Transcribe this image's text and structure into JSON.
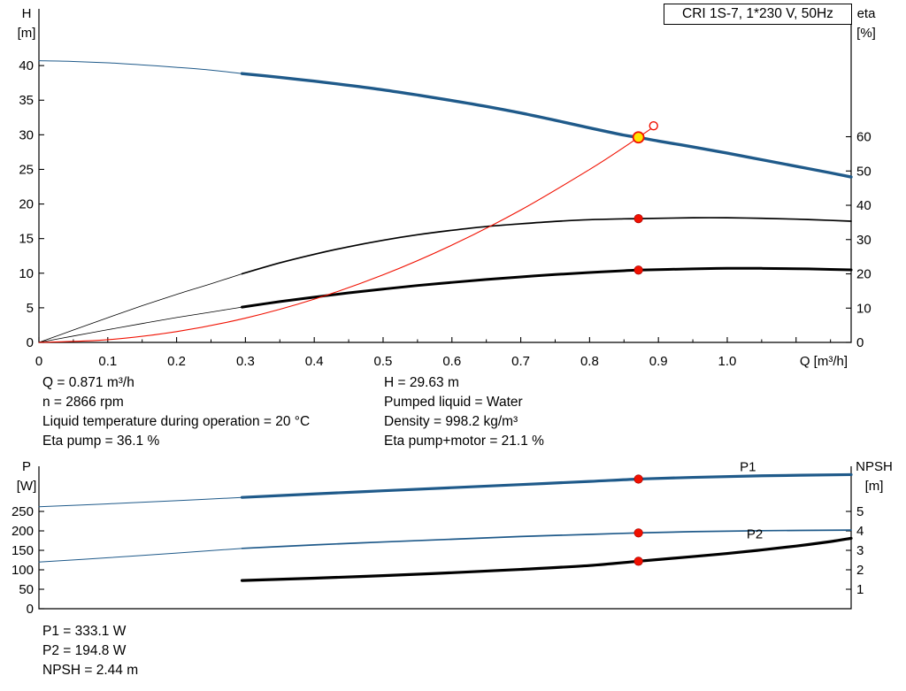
{
  "title_box": "CRI 1S-7, 1*230 V, 50Hz",
  "info_top": {
    "col1": [
      "Q = 0.871 m³/h",
      "n = 2866 rpm",
      "Liquid temperature during operation = 20 °C",
      "Eta pump = 36.1 %"
    ],
    "col2": [
      "H = 29.63 m",
      "Pumped liquid = Water",
      "Density = 998.2 kg/m³",
      "Eta pump+motor = 21.1 %"
    ]
  },
  "info_bottom": [
    "P1 = 333.1 W",
    "P2 = 194.8 W",
    "NPSH = 2.44 m"
  ],
  "colors": {
    "blue": "#1f5a8a",
    "black": "#000000",
    "red": "#f01000",
    "yellow": "#ffe600",
    "axis": "#000000"
  },
  "chart_data": [
    {
      "id": "hq",
      "type": "line",
      "title": "CRI 1S-7, 1*230 V, 50Hz",
      "x_axis": {
        "label": "Q [m³/h]",
        "min": 0,
        "max": 1.18,
        "minor_step": 0.05,
        "ticks": [
          {
            "v": 0,
            "t": "0"
          },
          {
            "v": 0.1,
            "t": "0.1"
          },
          {
            "v": 0.2,
            "t": "0.2"
          },
          {
            "v": 0.3,
            "t": "0.3"
          },
          {
            "v": 0.4,
            "t": "0.4"
          },
          {
            "v": 0.5,
            "t": "0.5"
          },
          {
            "v": 0.6,
            "t": "0.6"
          },
          {
            "v": 0.7,
            "t": "0.7"
          },
          {
            "v": 0.8,
            "t": "0.8"
          },
          {
            "v": 0.9,
            "t": "0.9"
          },
          {
            "v": 1.0,
            "t": "1.0"
          },
          {
            "v": 1.1,
            "t": ""
          }
        ]
      },
      "y_left": {
        "name": "H",
        "unit": "[m]",
        "min": 0,
        "max": 48.2,
        "ticks": [
          0,
          5,
          10,
          15,
          20,
          25,
          30,
          35,
          40
        ]
      },
      "y_right": {
        "name": "eta",
        "unit": "[%]",
        "min": 0,
        "max": 97.3,
        "ticks": [
          0,
          10,
          20,
          30,
          40,
          50,
          60
        ]
      },
      "series": [
        {
          "name": "head-curve",
          "axis": "left",
          "color": "blue",
          "width": 3.4,
          "points": [
            [
              0.295,
              38.85
            ],
            [
              0.35,
              38.3
            ],
            [
              0.4,
              37.75
            ],
            [
              0.45,
              37.15
            ],
            [
              0.5,
              36.5
            ],
            [
              0.55,
              35.75
            ],
            [
              0.6,
              34.95
            ],
            [
              0.65,
              34.1
            ],
            [
              0.7,
              33.15
            ],
            [
              0.75,
              32.1
            ],
            [
              0.8,
              31.0
            ],
            [
              0.85,
              29.95
            ],
            [
              0.871,
              29.63
            ],
            [
              0.9,
              29.1
            ],
            [
              0.95,
              28.25
            ],
            [
              1.0,
              27.35
            ],
            [
              1.05,
              26.4
            ],
            [
              1.1,
              25.45
            ],
            [
              1.15,
              24.5
            ],
            [
              1.18,
              23.9
            ]
          ]
        },
        {
          "name": "head-curve-extension",
          "axis": "left",
          "color": "blue",
          "width": 1,
          "points": [
            [
              0,
              40.7
            ],
            [
              0.05,
              40.6
            ],
            [
              0.1,
              40.4
            ],
            [
              0.15,
              40.1
            ],
            [
              0.2,
              39.75
            ],
            [
              0.25,
              39.35
            ],
            [
              0.295,
              38.85
            ]
          ]
        },
        {
          "name": "eta-pump-curve",
          "axis": "right",
          "color": "black",
          "width": 1.7,
          "points": [
            [
              0.295,
              20.0
            ],
            [
              0.35,
              23.2
            ],
            [
              0.4,
              25.7
            ],
            [
              0.45,
              27.9
            ],
            [
              0.5,
              29.8
            ],
            [
              0.55,
              31.4
            ],
            [
              0.6,
              32.7
            ],
            [
              0.65,
              33.8
            ],
            [
              0.7,
              34.6
            ],
            [
              0.75,
              35.3
            ],
            [
              0.8,
              35.8
            ],
            [
              0.85,
              36.05
            ],
            [
              0.871,
              36.1
            ],
            [
              0.95,
              36.35
            ],
            [
              1.0,
              36.35
            ],
            [
              1.05,
              36.2
            ],
            [
              1.1,
              35.95
            ],
            [
              1.15,
              35.6
            ],
            [
              1.18,
              35.35
            ]
          ]
        },
        {
          "name": "eta-pump-extension",
          "axis": "right",
          "color": "black",
          "width": 0.8,
          "points": [
            [
              0,
              0
            ],
            [
              0.05,
              3.6
            ],
            [
              0.1,
              7.2
            ],
            [
              0.15,
              10.7
            ],
            [
              0.2,
              14.0
            ],
            [
              0.25,
              17.1
            ],
            [
              0.295,
              20.0
            ]
          ]
        },
        {
          "name": "eta-pump-motor-curve",
          "axis": "right",
          "color": "black",
          "width": 3,
          "points": [
            [
              0.295,
              10.3
            ],
            [
              0.35,
              11.9
            ],
            [
              0.4,
              13.2
            ],
            [
              0.45,
              14.45
            ],
            [
              0.5,
              15.55
            ],
            [
              0.55,
              16.6
            ],
            [
              0.6,
              17.5
            ],
            [
              0.65,
              18.35
            ],
            [
              0.7,
              19.1
            ],
            [
              0.75,
              19.8
            ],
            [
              0.8,
              20.4
            ],
            [
              0.85,
              20.9
            ],
            [
              0.871,
              21.1
            ],
            [
              0.95,
              21.45
            ],
            [
              1.0,
              21.6
            ],
            [
              1.05,
              21.6
            ],
            [
              1.1,
              21.5
            ],
            [
              1.15,
              21.3
            ],
            [
              1.18,
              21.15
            ]
          ]
        },
        {
          "name": "eta-pump-motor-extension",
          "axis": "right",
          "color": "black",
          "width": 0.8,
          "points": [
            [
              0,
              0
            ],
            [
              0.05,
              1.85
            ],
            [
              0.1,
              3.7
            ],
            [
              0.15,
              5.5
            ],
            [
              0.2,
              7.25
            ],
            [
              0.25,
              8.85
            ],
            [
              0.295,
              10.3
            ]
          ]
        },
        {
          "name": "system-curve",
          "axis": "left",
          "color": "red",
          "width": 1.1,
          "points": [
            [
              0,
              0
            ],
            [
              0.1,
              0.39
            ],
            [
              0.2,
              1.56
            ],
            [
              0.3,
              3.51
            ],
            [
              0.4,
              6.25
            ],
            [
              0.5,
              9.76
            ],
            [
              0.6,
              14.06
            ],
            [
              0.7,
              19.13
            ],
            [
              0.8,
              24.99
            ],
            [
              0.85,
              28.2
            ],
            [
              0.871,
              29.63
            ],
            [
              0.891,
              31.0
            ]
          ]
        }
      ],
      "markers": [
        {
          "name": "duty-point",
          "axis": "left",
          "q": 0.871,
          "v": 29.63,
          "style": "duty"
        },
        {
          "name": "requested-duty-point",
          "axis": "left",
          "q": 0.893,
          "v": 31.3,
          "style": "open"
        },
        {
          "name": "eta-pump-point",
          "axis": "right",
          "q": 0.871,
          "v": 36.1,
          "style": "dot"
        },
        {
          "name": "eta-pump-motor-point",
          "axis": "right",
          "q": 0.871,
          "v": 21.1,
          "style": "dot"
        }
      ]
    },
    {
      "id": "power",
      "type": "line",
      "title": "",
      "x_axis": {
        "label": "",
        "min": 0,
        "max": 1.18,
        "minor_step": 0,
        "ticks": []
      },
      "y_left": {
        "name": "P",
        "unit": "[W]",
        "min": 0,
        "max": 366,
        "ticks": [
          0,
          50,
          100,
          150,
          200,
          250
        ]
      },
      "y_right": {
        "name": "NPSH",
        "unit": "[m]",
        "min": 0,
        "max": 7.32,
        "ticks": [
          1,
          2,
          3,
          4,
          5
        ]
      },
      "series": [
        {
          "name": "p1-curve",
          "axis": "left",
          "color": "blue",
          "width": 3.2,
          "points": [
            [
              0.295,
              286
            ],
            [
              0.4,
              295
            ],
            [
              0.5,
              303
            ],
            [
              0.6,
              311
            ],
            [
              0.7,
              319
            ],
            [
              0.8,
              327
            ],
            [
              0.871,
              333.1
            ],
            [
              0.95,
              337.5
            ],
            [
              1.05,
              341.5
            ],
            [
              1.18,
              344.5
            ]
          ],
          "label": {
            "text": "P1",
            "q": 1.03,
            "v": 353
          }
        },
        {
          "name": "p1-extension",
          "axis": "left",
          "color": "blue",
          "width": 1,
          "points": [
            [
              0,
              262
            ],
            [
              0.1,
              269.5
            ],
            [
              0.2,
              277.5
            ],
            [
              0.295,
              286
            ]
          ]
        },
        {
          "name": "p2-curve",
          "axis": "left",
          "color": "blue",
          "width": 1.7,
          "points": [
            [
              0.295,
              155
            ],
            [
              0.4,
              164
            ],
            [
              0.5,
              171.5
            ],
            [
              0.6,
              178.5
            ],
            [
              0.7,
              185.5
            ],
            [
              0.8,
              191
            ],
            [
              0.871,
              194.8
            ],
            [
              0.95,
              198
            ],
            [
              1.05,
              200.5
            ],
            [
              1.18,
              202
            ]
          ],
          "label": {
            "text": "P2",
            "q": 1.04,
            "v": 181
          }
        },
        {
          "name": "p2-extension",
          "axis": "left",
          "color": "blue",
          "width": 1,
          "points": [
            [
              0,
              120
            ],
            [
              0.1,
              131
            ],
            [
              0.2,
              143
            ],
            [
              0.295,
              155
            ]
          ]
        },
        {
          "name": "npsh-curve",
          "axis": "right",
          "color": "black",
          "width": 3.2,
          "points": [
            [
              0.295,
              1.45
            ],
            [
              0.4,
              1.57
            ],
            [
              0.5,
              1.7
            ],
            [
              0.6,
              1.85
            ],
            [
              0.7,
              2.02
            ],
            [
              0.8,
              2.22
            ],
            [
              0.871,
              2.44
            ],
            [
              0.95,
              2.68
            ],
            [
              1.0,
              2.84
            ],
            [
              1.05,
              3.02
            ],
            [
              1.1,
              3.22
            ],
            [
              1.15,
              3.45
            ],
            [
              1.18,
              3.62
            ]
          ]
        }
      ],
      "markers": [
        {
          "name": "p1-point",
          "axis": "left",
          "q": 0.871,
          "v": 333.1,
          "style": "dot"
        },
        {
          "name": "p2-point",
          "axis": "left",
          "q": 0.871,
          "v": 194.8,
          "style": "dot"
        },
        {
          "name": "npsh-point",
          "axis": "right",
          "q": 0.871,
          "v": 2.44,
          "style": "dot"
        }
      ]
    }
  ]
}
